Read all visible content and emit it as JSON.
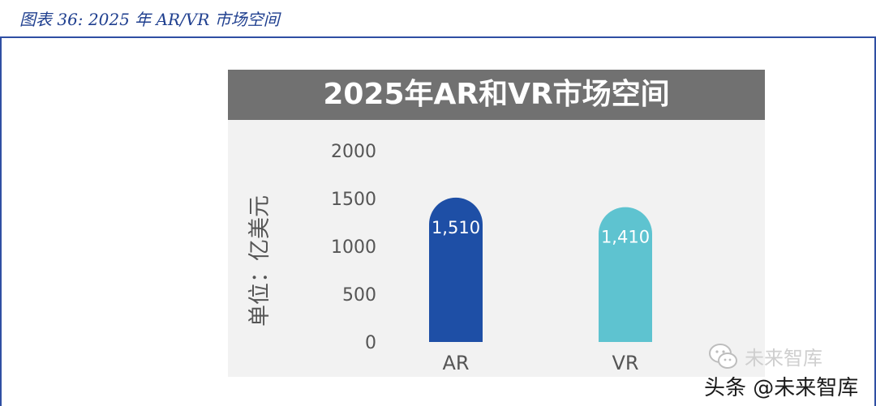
{
  "figure": {
    "caption": "图表 36:  2025 年 AR/VR 市场空间"
  },
  "colors": {
    "caption_blue": "#1f3f8f",
    "rule_blue": "#2f4fa3",
    "title_bar_gray": "#717171",
    "ar_bar": "#1e4fa6",
    "vr_bar": "#5ec3d0",
    "card_bg": "#f2f2f2",
    "axis_text": "#555555"
  },
  "chart_data": {
    "type": "bar",
    "title": "2025年AR和VR市场空间",
    "ylabel": "单位：亿美元",
    "xlabel": "",
    "categories": [
      "AR",
      "VR"
    ],
    "values": [
      1510,
      1410
    ],
    "data_labels": [
      "1,510",
      "1,410"
    ],
    "ylim": [
      0,
      2000
    ],
    "yticks": [
      0,
      500,
      1000,
      1500,
      2000
    ],
    "ytick_labels": [
      "0",
      "500",
      "1000",
      "1500",
      "2000"
    ],
    "grid": false,
    "legend": "none"
  },
  "watermark": {
    "top_text": "未来智库",
    "bottom_text": "头条 @未来智库",
    "logo_icon": "wechat-icon"
  }
}
